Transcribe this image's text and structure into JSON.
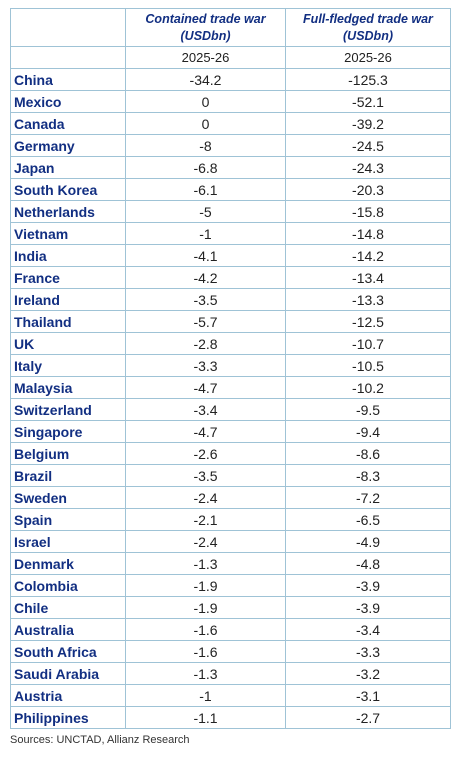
{
  "headers": {
    "col1": [
      "Contained trade war",
      "(USDbn)"
    ],
    "col2": [
      "Full-fledged trade war",
      "(USDbn)"
    ],
    "period1": "2025-26",
    "period2": "2025-26"
  },
  "rows": [
    {
      "country": "China",
      "contained": "-34.2",
      "full": "-125.3"
    },
    {
      "country": "Mexico",
      "contained": "0",
      "full": "-52.1"
    },
    {
      "country": "Canada",
      "contained": "0",
      "full": "-39.2"
    },
    {
      "country": "Germany",
      "contained": "-8",
      "full": "-24.5"
    },
    {
      "country": "Japan",
      "contained": "-6.8",
      "full": "-24.3"
    },
    {
      "country": "South Korea",
      "contained": "-6.1",
      "full": "-20.3"
    },
    {
      "country": "Netherlands",
      "contained": "-5",
      "full": "-15.8"
    },
    {
      "country": "Vietnam",
      "contained": "-1",
      "full": "-14.8"
    },
    {
      "country": "India",
      "contained": "-4.1",
      "full": "-14.2"
    },
    {
      "country": "France",
      "contained": "-4.2",
      "full": "-13.4"
    },
    {
      "country": "Ireland",
      "contained": "-3.5",
      "full": "-13.3"
    },
    {
      "country": "Thailand",
      "contained": "-5.7",
      "full": "-12.5"
    },
    {
      "country": "UK",
      "contained": "-2.8",
      "full": "-10.7"
    },
    {
      "country": "Italy",
      "contained": "-3.3",
      "full": "-10.5"
    },
    {
      "country": "Malaysia",
      "contained": "-4.7",
      "full": "-10.2"
    },
    {
      "country": "Switzerland",
      "contained": "-3.4",
      "full": "-9.5"
    },
    {
      "country": "Singapore",
      "contained": "-4.7",
      "full": "-9.4"
    },
    {
      "country": "Belgium",
      "contained": "-2.6",
      "full": "-8.6"
    },
    {
      "country": "Brazil",
      "contained": "-3.5",
      "full": "-8.3"
    },
    {
      "country": "Sweden",
      "contained": "-2.4",
      "full": "-7.2"
    },
    {
      "country": "Spain",
      "contained": "-2.1",
      "full": "-6.5"
    },
    {
      "country": "Israel",
      "contained": "-2.4",
      "full": "-4.9"
    },
    {
      "country": "Denmark",
      "contained": "-1.3",
      "full": "-4.8"
    },
    {
      "country": "Colombia",
      "contained": "-1.9",
      "full": "-3.9"
    },
    {
      "country": "Chile",
      "contained": "-1.9",
      "full": "-3.9"
    },
    {
      "country": "Australia",
      "contained": "-1.6",
      "full": "-3.4"
    },
    {
      "country": "South Africa",
      "contained": "-1.6",
      "full": "-3.3"
    },
    {
      "country": "Saudi Arabia",
      "contained": "-1.3",
      "full": "-3.2"
    },
    {
      "country": "Austria",
      "contained": "-1",
      "full": "-3.1"
    },
    {
      "country": "Philippines",
      "contained": "-1.1",
      "full": "-2.7"
    }
  ],
  "source": "Sources: UNCTAD, Allianz Research"
}
